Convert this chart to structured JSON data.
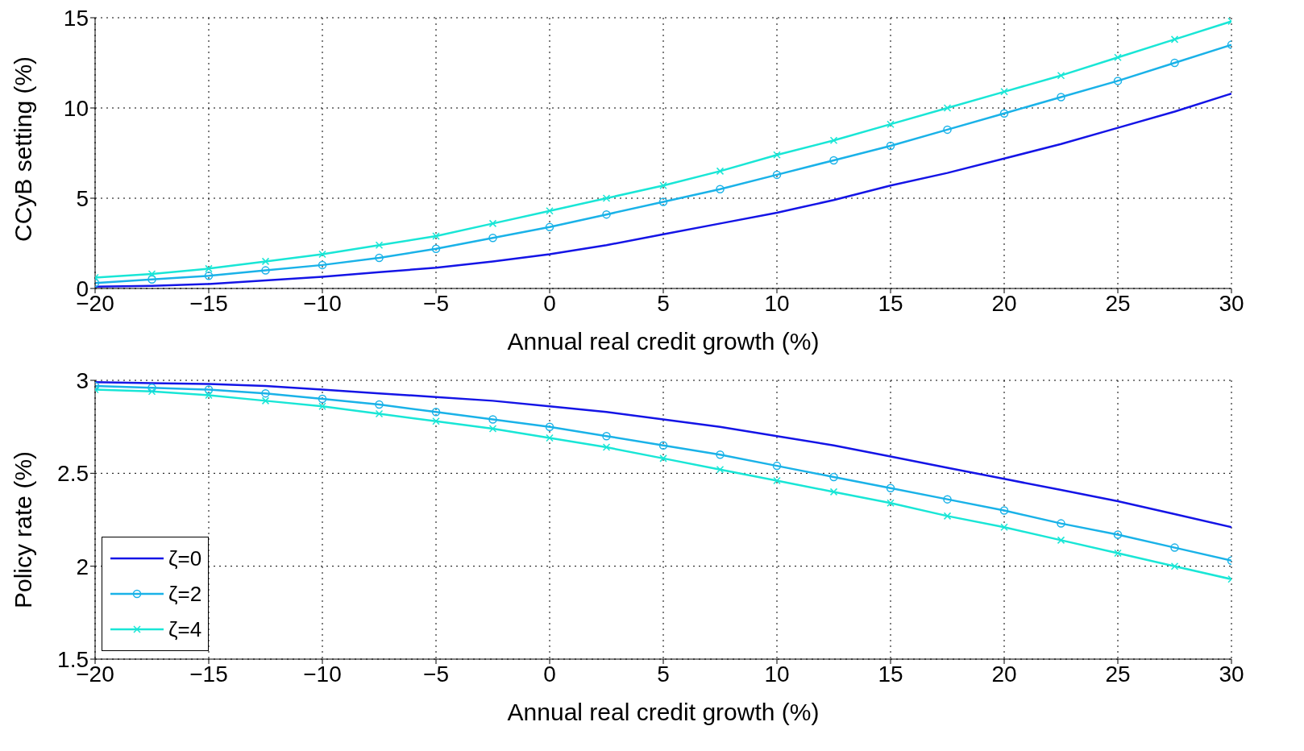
{
  "chart_data": [
    {
      "type": "line",
      "xlabel": "Annual real credit growth (%)",
      "ylabel": "CCyB setting (%)",
      "x": [
        -20,
        -17.5,
        -15,
        -12.5,
        -10,
        -7.5,
        -5,
        -2.5,
        0,
        2.5,
        5,
        7.5,
        10,
        12.5,
        15,
        17.5,
        20,
        22.5,
        25,
        27.5,
        30
      ],
      "xlim": [
        -20,
        30
      ],
      "xticks": [
        -20,
        -15,
        -10,
        -5,
        0,
        5,
        10,
        15,
        20,
        25,
        30
      ],
      "ylim": [
        0,
        15
      ],
      "yticks": [
        0,
        5,
        10,
        15
      ],
      "grid": true,
      "legend": false,
      "line_style": "solid",
      "series": [
        {
          "color": "#1414e6",
          "marker": "none",
          "values": [
            0.1,
            0.15,
            0.25,
            0.45,
            0.65,
            0.9,
            1.15,
            1.5,
            1.9,
            2.4,
            3.0,
            3.6,
            4.2,
            4.9,
            5.7,
            6.4,
            7.2,
            8.0,
            8.9,
            9.8,
            10.8
          ]
        },
        {
          "color": "#1ab2e8",
          "marker": "circle",
          "values": [
            0.3,
            0.5,
            0.7,
            1.0,
            1.3,
            1.7,
            2.2,
            2.8,
            3.4,
            4.1,
            4.8,
            5.5,
            6.3,
            7.1,
            7.9,
            8.8,
            9.7,
            10.6,
            11.5,
            12.5,
            13.5
          ]
        },
        {
          "color": "#19e6d6",
          "marker": "cross",
          "values": [
            0.6,
            0.8,
            1.1,
            1.5,
            1.9,
            2.4,
            2.9,
            3.6,
            4.3,
            5.0,
            5.7,
            6.5,
            7.4,
            8.2,
            9.1,
            10.0,
            10.9,
            11.8,
            12.8,
            13.8,
            14.8
          ]
        }
      ]
    },
    {
      "type": "line",
      "xlabel": "Annual real credit growth (%)",
      "ylabel": "Policy rate (%)",
      "x": [
        -20,
        -17.5,
        -15,
        -12.5,
        -10,
        -7.5,
        -5,
        -2.5,
        0,
        2.5,
        5,
        7.5,
        10,
        12.5,
        15,
        17.5,
        20,
        22.5,
        25,
        27.5,
        30
      ],
      "xlim": [
        -20,
        30
      ],
      "xticks": [
        -20,
        -15,
        -10,
        -5,
        0,
        5,
        10,
        15,
        20,
        25,
        30
      ],
      "ylim": [
        1.5,
        3
      ],
      "yticks": [
        1.5,
        2,
        2.5,
        3
      ],
      "grid": true,
      "legend": "bottom left",
      "line_style": "solid",
      "series": [
        {
          "name": "ζ=0",
          "color": "#1414e6",
          "marker": "none",
          "values": [
            2.99,
            2.985,
            2.98,
            2.97,
            2.95,
            2.93,
            2.91,
            2.89,
            2.86,
            2.83,
            2.79,
            2.75,
            2.7,
            2.65,
            2.59,
            2.53,
            2.47,
            2.41,
            2.35,
            2.28,
            2.21
          ]
        },
        {
          "name": "ζ=2",
          "color": "#1ab2e8",
          "marker": "circle",
          "values": [
            2.97,
            2.96,
            2.95,
            2.93,
            2.9,
            2.87,
            2.83,
            2.79,
            2.75,
            2.7,
            2.65,
            2.6,
            2.54,
            2.48,
            2.42,
            2.36,
            2.3,
            2.23,
            2.17,
            2.1,
            2.03
          ]
        },
        {
          "name": "ζ=4",
          "color": "#19e6d6",
          "marker": "cross",
          "values": [
            2.95,
            2.94,
            2.92,
            2.89,
            2.86,
            2.82,
            2.78,
            2.74,
            2.69,
            2.64,
            2.58,
            2.52,
            2.46,
            2.4,
            2.34,
            2.27,
            2.21,
            2.14,
            2.07,
            2.0,
            1.93
          ]
        }
      ]
    }
  ]
}
